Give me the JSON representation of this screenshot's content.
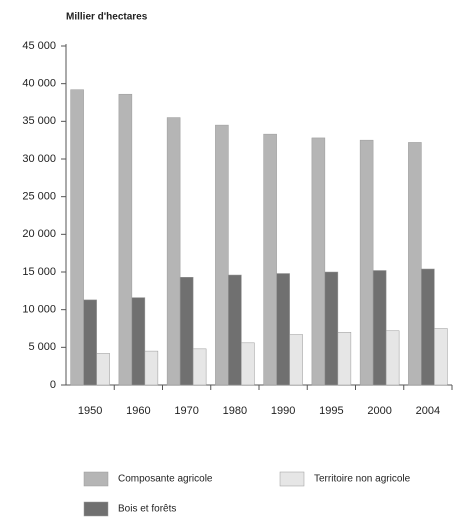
{
  "chart_data": {
    "type": "bar",
    "y_axis_label": "Millier d'hectares",
    "categories": [
      "1950",
      "1960",
      "1970",
      "1980",
      "1990",
      "1995",
      "2000",
      "2004"
    ],
    "series": [
      {
        "name": "Composante agricole",
        "color": "#b5b5b5",
        "values": [
          39200,
          38600,
          35500,
          34500,
          33300,
          32800,
          32500,
          32200
        ]
      },
      {
        "name": "Bois et forêts",
        "color": "#707070",
        "values": [
          11300,
          11600,
          14300,
          14600,
          14800,
          15000,
          15200,
          15400
        ]
      },
      {
        "name": "Territoire non agricole",
        "color": "#e6e6e6",
        "values": [
          4200,
          4500,
          4800,
          5600,
          6700,
          7000,
          7200,
          7500
        ]
      }
    ],
    "ylim": [
      0,
      45000
    ],
    "yticks": [
      0,
      {
        "value": 5000,
        "label": "5 000"
      },
      {
        "value": 10000,
        "label": "10 000"
      },
      {
        "value": 15000,
        "label": "15 000"
      },
      {
        "value": 20000,
        "label": "20 000"
      },
      {
        "value": 25000,
        "label": "25 000"
      },
      {
        "value": 30000,
        "label": "30 000"
      },
      {
        "value": 35000,
        "label": "35 000"
      },
      {
        "value": 40000,
        "label": "40 000"
      },
      {
        "value": 45000,
        "label": "45 000"
      }
    ],
    "grid": false
  }
}
